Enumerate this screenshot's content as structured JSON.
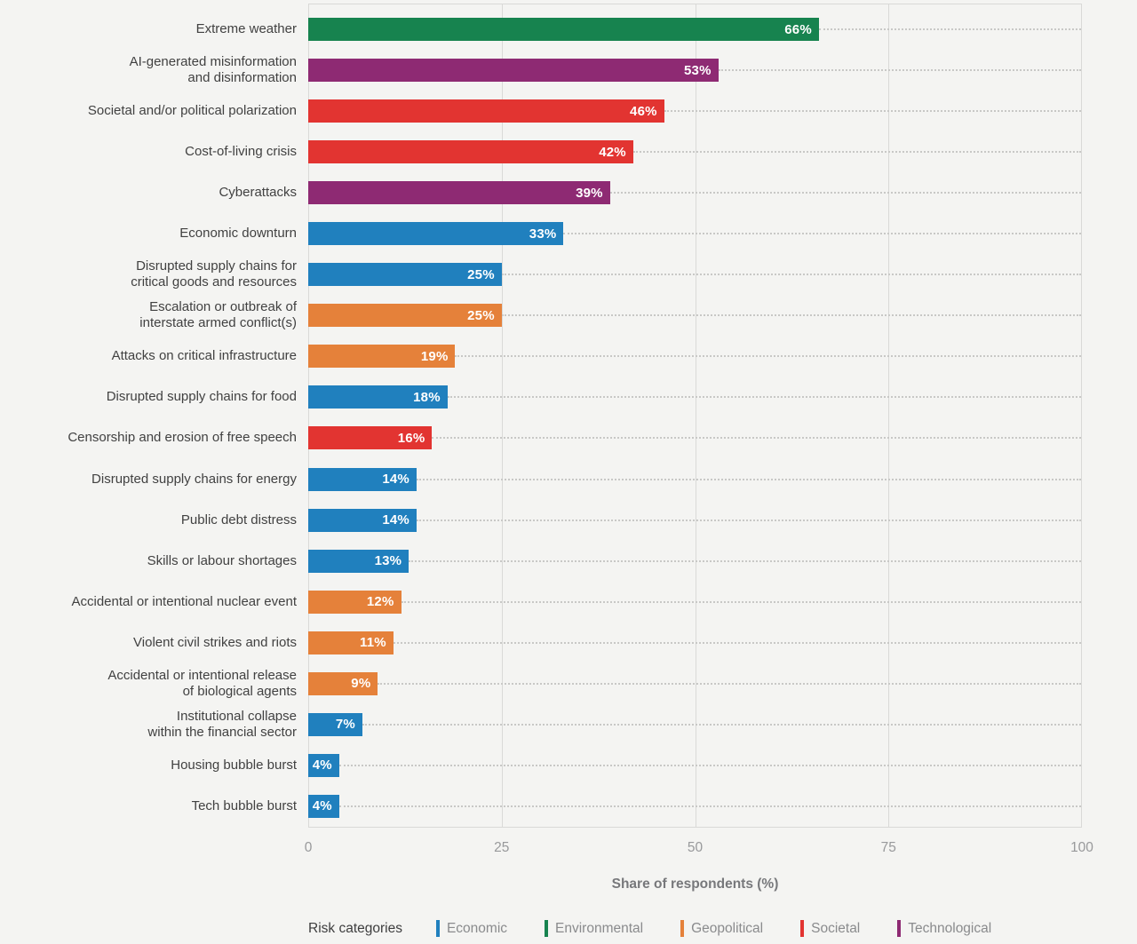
{
  "page": {
    "background_color": "#f4f4f2",
    "grid_color": "#d9d9d7",
    "leader_dot_color": "#c8c8c6"
  },
  "chart_data": {
    "type": "bar",
    "orientation": "horizontal",
    "title": "",
    "xlabel": "Share of respondents (%)",
    "ylabel": "",
    "xlim": [
      0,
      100
    ],
    "xticks": [
      0,
      25,
      50,
      75,
      100
    ],
    "grid": "vertical solid gridlines at ticks; dotted leader line from each bar end to right edge",
    "value_suffix": "%",
    "bars": [
      {
        "label": "Extreme weather",
        "value": 66,
        "category": "Environmental"
      },
      {
        "label": "AI-generated misinformation\nand disinformation",
        "value": 53,
        "category": "Technological"
      },
      {
        "label": "Societal and/or political polarization",
        "value": 46,
        "category": "Societal"
      },
      {
        "label": "Cost-of-living crisis",
        "value": 42,
        "category": "Societal"
      },
      {
        "label": "Cyberattacks",
        "value": 39,
        "category": "Technological"
      },
      {
        "label": "Economic downturn",
        "value": 33,
        "category": "Economic"
      },
      {
        "label": "Disrupted supply chains for\ncritical goods and resources",
        "value": 25,
        "category": "Economic"
      },
      {
        "label": "Escalation or outbreak of\ninterstate armed conflict(s)",
        "value": 25,
        "category": "Geopolitical"
      },
      {
        "label": "Attacks on critical infrastructure",
        "value": 19,
        "category": "Geopolitical"
      },
      {
        "label": "Disrupted supply chains for food",
        "value": 18,
        "category": "Economic"
      },
      {
        "label": "Censorship and erosion of free speech",
        "value": 16,
        "category": "Societal"
      },
      {
        "label": "Disrupted supply chains for energy",
        "value": 14,
        "category": "Economic"
      },
      {
        "label": "Public debt distress",
        "value": 14,
        "category": "Economic"
      },
      {
        "label": "Skills or labour shortages",
        "value": 13,
        "category": "Economic"
      },
      {
        "label": "Accidental or intentional nuclear event",
        "value": 12,
        "category": "Geopolitical"
      },
      {
        "label": "Violent civil strikes and riots",
        "value": 11,
        "category": "Geopolitical"
      },
      {
        "label": "Accidental or intentional release\nof biological agents",
        "value": 9,
        "category": "Geopolitical"
      },
      {
        "label": "Institutional collapse\nwithin the financial sector",
        "value": 7,
        "category": "Economic"
      },
      {
        "label": "Housing bubble burst",
        "value": 4,
        "category": "Economic"
      },
      {
        "label": "Tech bubble burst",
        "value": 4,
        "category": "Economic"
      }
    ]
  },
  "legend": {
    "title": "Risk categories",
    "position": "bottom",
    "items": [
      {
        "name": "Economic",
        "color": "#2080be"
      },
      {
        "name": "Environmental",
        "color": "#17834f"
      },
      {
        "name": "Geopolitical",
        "color": "#e5813a"
      },
      {
        "name": "Societal",
        "color": "#e23431"
      },
      {
        "name": "Technological",
        "color": "#8e2a73"
      }
    ]
  }
}
